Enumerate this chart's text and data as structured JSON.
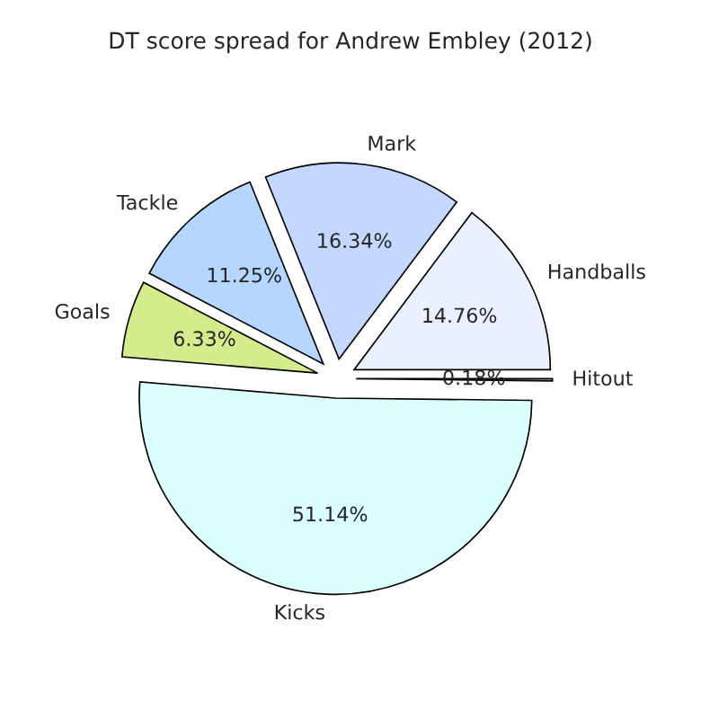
{
  "chart_data": {
    "type": "pie",
    "title": "DT score spread for Andrew Embley (2012)",
    "categories": [
      "Handballs",
      "Mark",
      "Tackle",
      "Goals",
      "Kicks",
      "Hitout"
    ],
    "values": [
      14.76,
      16.34,
      11.25,
      6.33,
      51.14,
      0.18
    ],
    "value_labels": [
      "14.76%",
      "16.34%",
      "11.25%",
      "6.33%",
      "51.14%",
      "0.18%"
    ],
    "colors": [
      "#eaf0ff",
      "#c4d8ff",
      "#b4d6ff",
      "#d4ec8c",
      "#dcffff",
      "#c8c8c8"
    ]
  }
}
